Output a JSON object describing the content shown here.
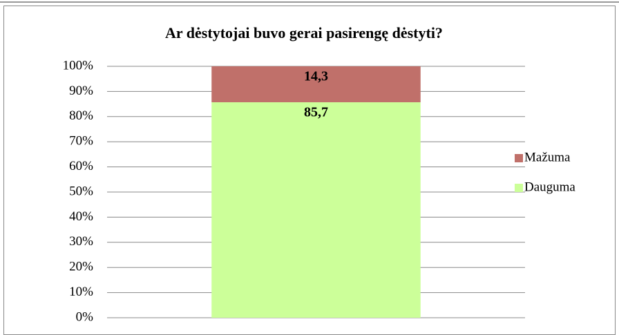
{
  "chart_data": {
    "type": "stacked_bar",
    "title": "Ar dėstytojai buvo gerai pasirengę  dėstyti?",
    "categories": [
      null
    ],
    "series": [
      {
        "name": "Dauguma",
        "color": "#ccff99",
        "values": [
          85.7
        ],
        "value_labels": [
          "85,7"
        ]
      },
      {
        "name": "Mažuma",
        "color": "#c0706a",
        "values": [
          14.3
        ],
        "value_labels": [
          "14,3"
        ]
      }
    ],
    "ylim": [
      0,
      100
    ],
    "yticks": [
      {
        "value": 0,
        "label": "0%"
      },
      {
        "value": 10,
        "label": "10%"
      },
      {
        "value": 20,
        "label": "20%"
      },
      {
        "value": 30,
        "label": "30%"
      },
      {
        "value": 40,
        "label": "40%"
      },
      {
        "value": 50,
        "label": "50%"
      },
      {
        "value": 60,
        "label": "60%"
      },
      {
        "value": 70,
        "label": "70%"
      },
      {
        "value": 80,
        "label": "80%"
      },
      {
        "value": 90,
        "label": "90%"
      },
      {
        "value": 100,
        "label": "100%"
      }
    ],
    "grid": true,
    "legend": "right"
  }
}
